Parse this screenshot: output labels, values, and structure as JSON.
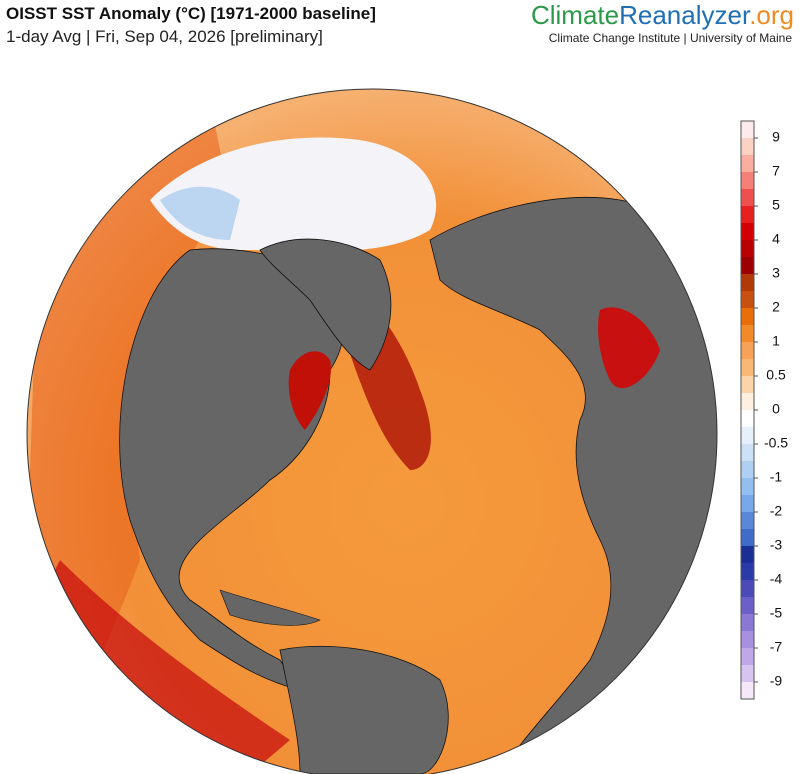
{
  "header": {
    "title": "OISST SST Anomaly (°C) [1971-2000 baseline]",
    "subtitle": "1-day Avg | Fri, Sep 04, 2026 [preliminary]"
  },
  "logo": {
    "parts": [
      "Climate",
      "Reanalyzer",
      ".org"
    ],
    "tagline": "Climate Change Institute | University of Maine"
  },
  "colorbar": {
    "labels": [
      9,
      7,
      5,
      4,
      3,
      2,
      1,
      0.5,
      0,
      -0.5,
      -1,
      -2,
      -3,
      -4,
      -5,
      -7,
      -9
    ],
    "colors": [
      "#fdeaea",
      "#fcd2c4",
      "#f9aea0",
      "#f48078",
      "#ee5050",
      "#e62020",
      "#d20000",
      "#b80000",
      "#9c0000",
      "#b03a08",
      "#c85010",
      "#e86e0a",
      "#f38a2a",
      "#f7a258",
      "#f9b878",
      "#fcd4aa",
      "#fff0e0",
      "#ffffff",
      "#e6f0fa",
      "#cce0f6",
      "#b0d0f2",
      "#92bef0",
      "#78a8e8",
      "#5a88d8",
      "#3e6cc8",
      "#1a2e96",
      "#2a3aa8",
      "#4a4ab8",
      "#6a60c8",
      "#8a78d4",
      "#a890e0",
      "#c0a8e8",
      "#d8c4f0",
      "#f4e8fa"
    ]
  }
}
